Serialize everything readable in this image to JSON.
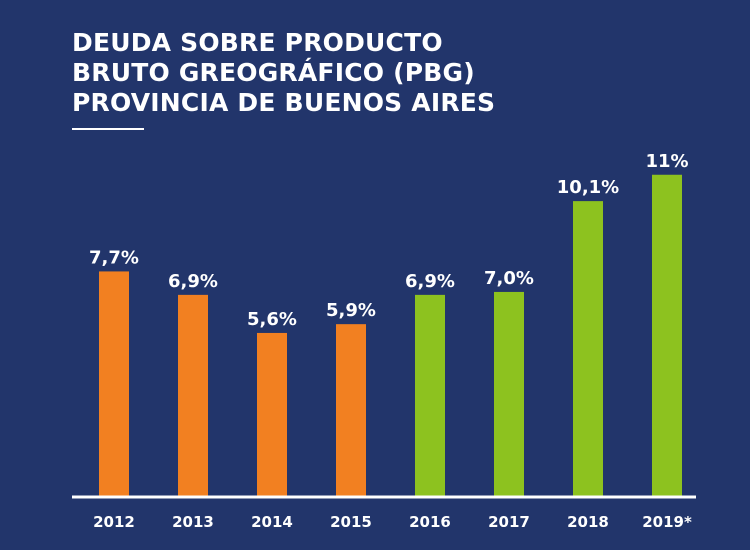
{
  "title_lines": [
    "DEUDA SOBRE PRODUCTO",
    "BRUTO GREOGRÁFICO (PBG)",
    "PROVINCIA DE BUENOS AIRES"
  ],
  "colors": {
    "background": "#22356b",
    "bar_orange": "#f28021",
    "bar_green": "#8dc21f",
    "axis": "#ffffff",
    "text": "#ffffff"
  },
  "chart_data": {
    "type": "bar",
    "title": "DEUDA SOBRE PRODUCTO BRUTO GREOGRÁFICO (PBG) PROVINCIA DE BUENOS AIRES",
    "xlabel": "",
    "ylabel": "",
    "categories": [
      "2012",
      "2013",
      "2014",
      "2015",
      "2016",
      "2017",
      "2018",
      "2019*"
    ],
    "values": [
      7.7,
      6.9,
      5.6,
      5.9,
      6.9,
      7.0,
      10.1,
      11
    ],
    "data_labels": [
      "7,7%",
      "6,9%",
      "5,6%",
      "5,9%",
      "6,9%",
      "7,0%",
      "10,1%",
      "11%"
    ],
    "bar_colors": [
      "orange",
      "orange",
      "orange",
      "orange",
      "green",
      "green",
      "green",
      "green"
    ],
    "ylim": [
      0,
      15.6
    ],
    "grid": false,
    "legend": "none"
  }
}
